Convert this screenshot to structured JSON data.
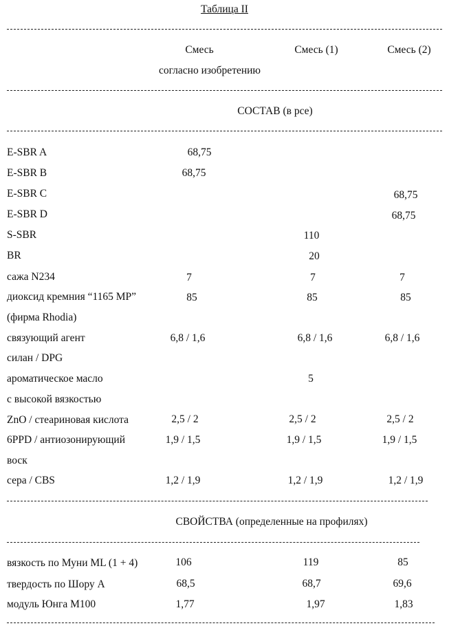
{
  "title": "Таблица II",
  "header": {
    "col1_line1": "Смесь",
    "col1_line2": "согласно изобретению",
    "col2": "Смесь (1)",
    "col3": "Смесь  (2)"
  },
  "section_composition": "СОСТАВ (в рсе)",
  "composition": [
    {
      "label": "E-SBR A",
      "v1": "68,75",
      "v2": "",
      "v3": ""
    },
    {
      "label": "E-SBR B",
      "v1": "68,75",
      "v2": "",
      "v3": ""
    },
    {
      "label": "E-SBR C",
      "v1": "",
      "v2": "",
      "v3": "68,75"
    },
    {
      "label": "E-SBR D",
      "v1": "",
      "v2": "",
      "v3": "68,75"
    },
    {
      "label": "S-SBR",
      "v1": "",
      "v2": "110",
      "v3": ""
    },
    {
      "label": "BR",
      "v1": "",
      "v2": "20",
      "v3": ""
    },
    {
      "label": "сажа  N234",
      "v1": "7",
      "v2": "7",
      "v3": "7"
    },
    {
      "label": "диоксид кремния “1165 MP”",
      "v1": "85",
      "v2": "85",
      "v3": "85"
    },
    {
      "label": "(фирма Rhodia)",
      "v1": "",
      "v2": "",
      "v3": ""
    },
    {
      "label": "связующий агент",
      "v1": "6,8 / 1,6",
      "v2": "6,8 / 1,6",
      "v3": "6,8 / 1,6"
    },
    {
      "label": "силан / DPG",
      "v1": "",
      "v2": "",
      "v3": ""
    },
    {
      "label": "ароматическое масло",
      "v1": "",
      "v2": "5",
      "v3": ""
    },
    {
      "label": "с высокой вязкостью",
      "v1": "",
      "v2": "",
      "v3": ""
    },
    {
      "label": "ZnO / стеариновая кислота",
      "v1": "2,5 / 2",
      "v2": "2,5 / 2",
      "v3": "2,5 / 2"
    },
    {
      "label": "6PPD / антиозонирующий",
      "v1": "1,9 / 1,5",
      "v2": "1,9 / 1,5",
      "v3": "1,9 / 1,5"
    },
    {
      "label": "воск",
      "v1": "",
      "v2": "",
      "v3": ""
    },
    {
      "label": "сера / CBS",
      "v1": "1,2 / 1,9",
      "v2": "1,2 / 1,9",
      "v3": "1,2 / 1,9"
    }
  ],
  "section_properties": "СВОЙСТВА (определенные на профилях)",
  "properties": [
    {
      "label": "вязкость по Муни ML (1 + 4)",
      "v1": "106",
      "v2": "119",
      "v3": "85"
    },
    {
      "label": "твердость по Шору А",
      "v1": "68,5",
      "v2": "68,7",
      "v3": "69,6"
    },
    {
      "label": "модуль Юнга  M100",
      "v1": "1,77",
      "v2": "1,97",
      "v3": "1,83"
    }
  ]
}
